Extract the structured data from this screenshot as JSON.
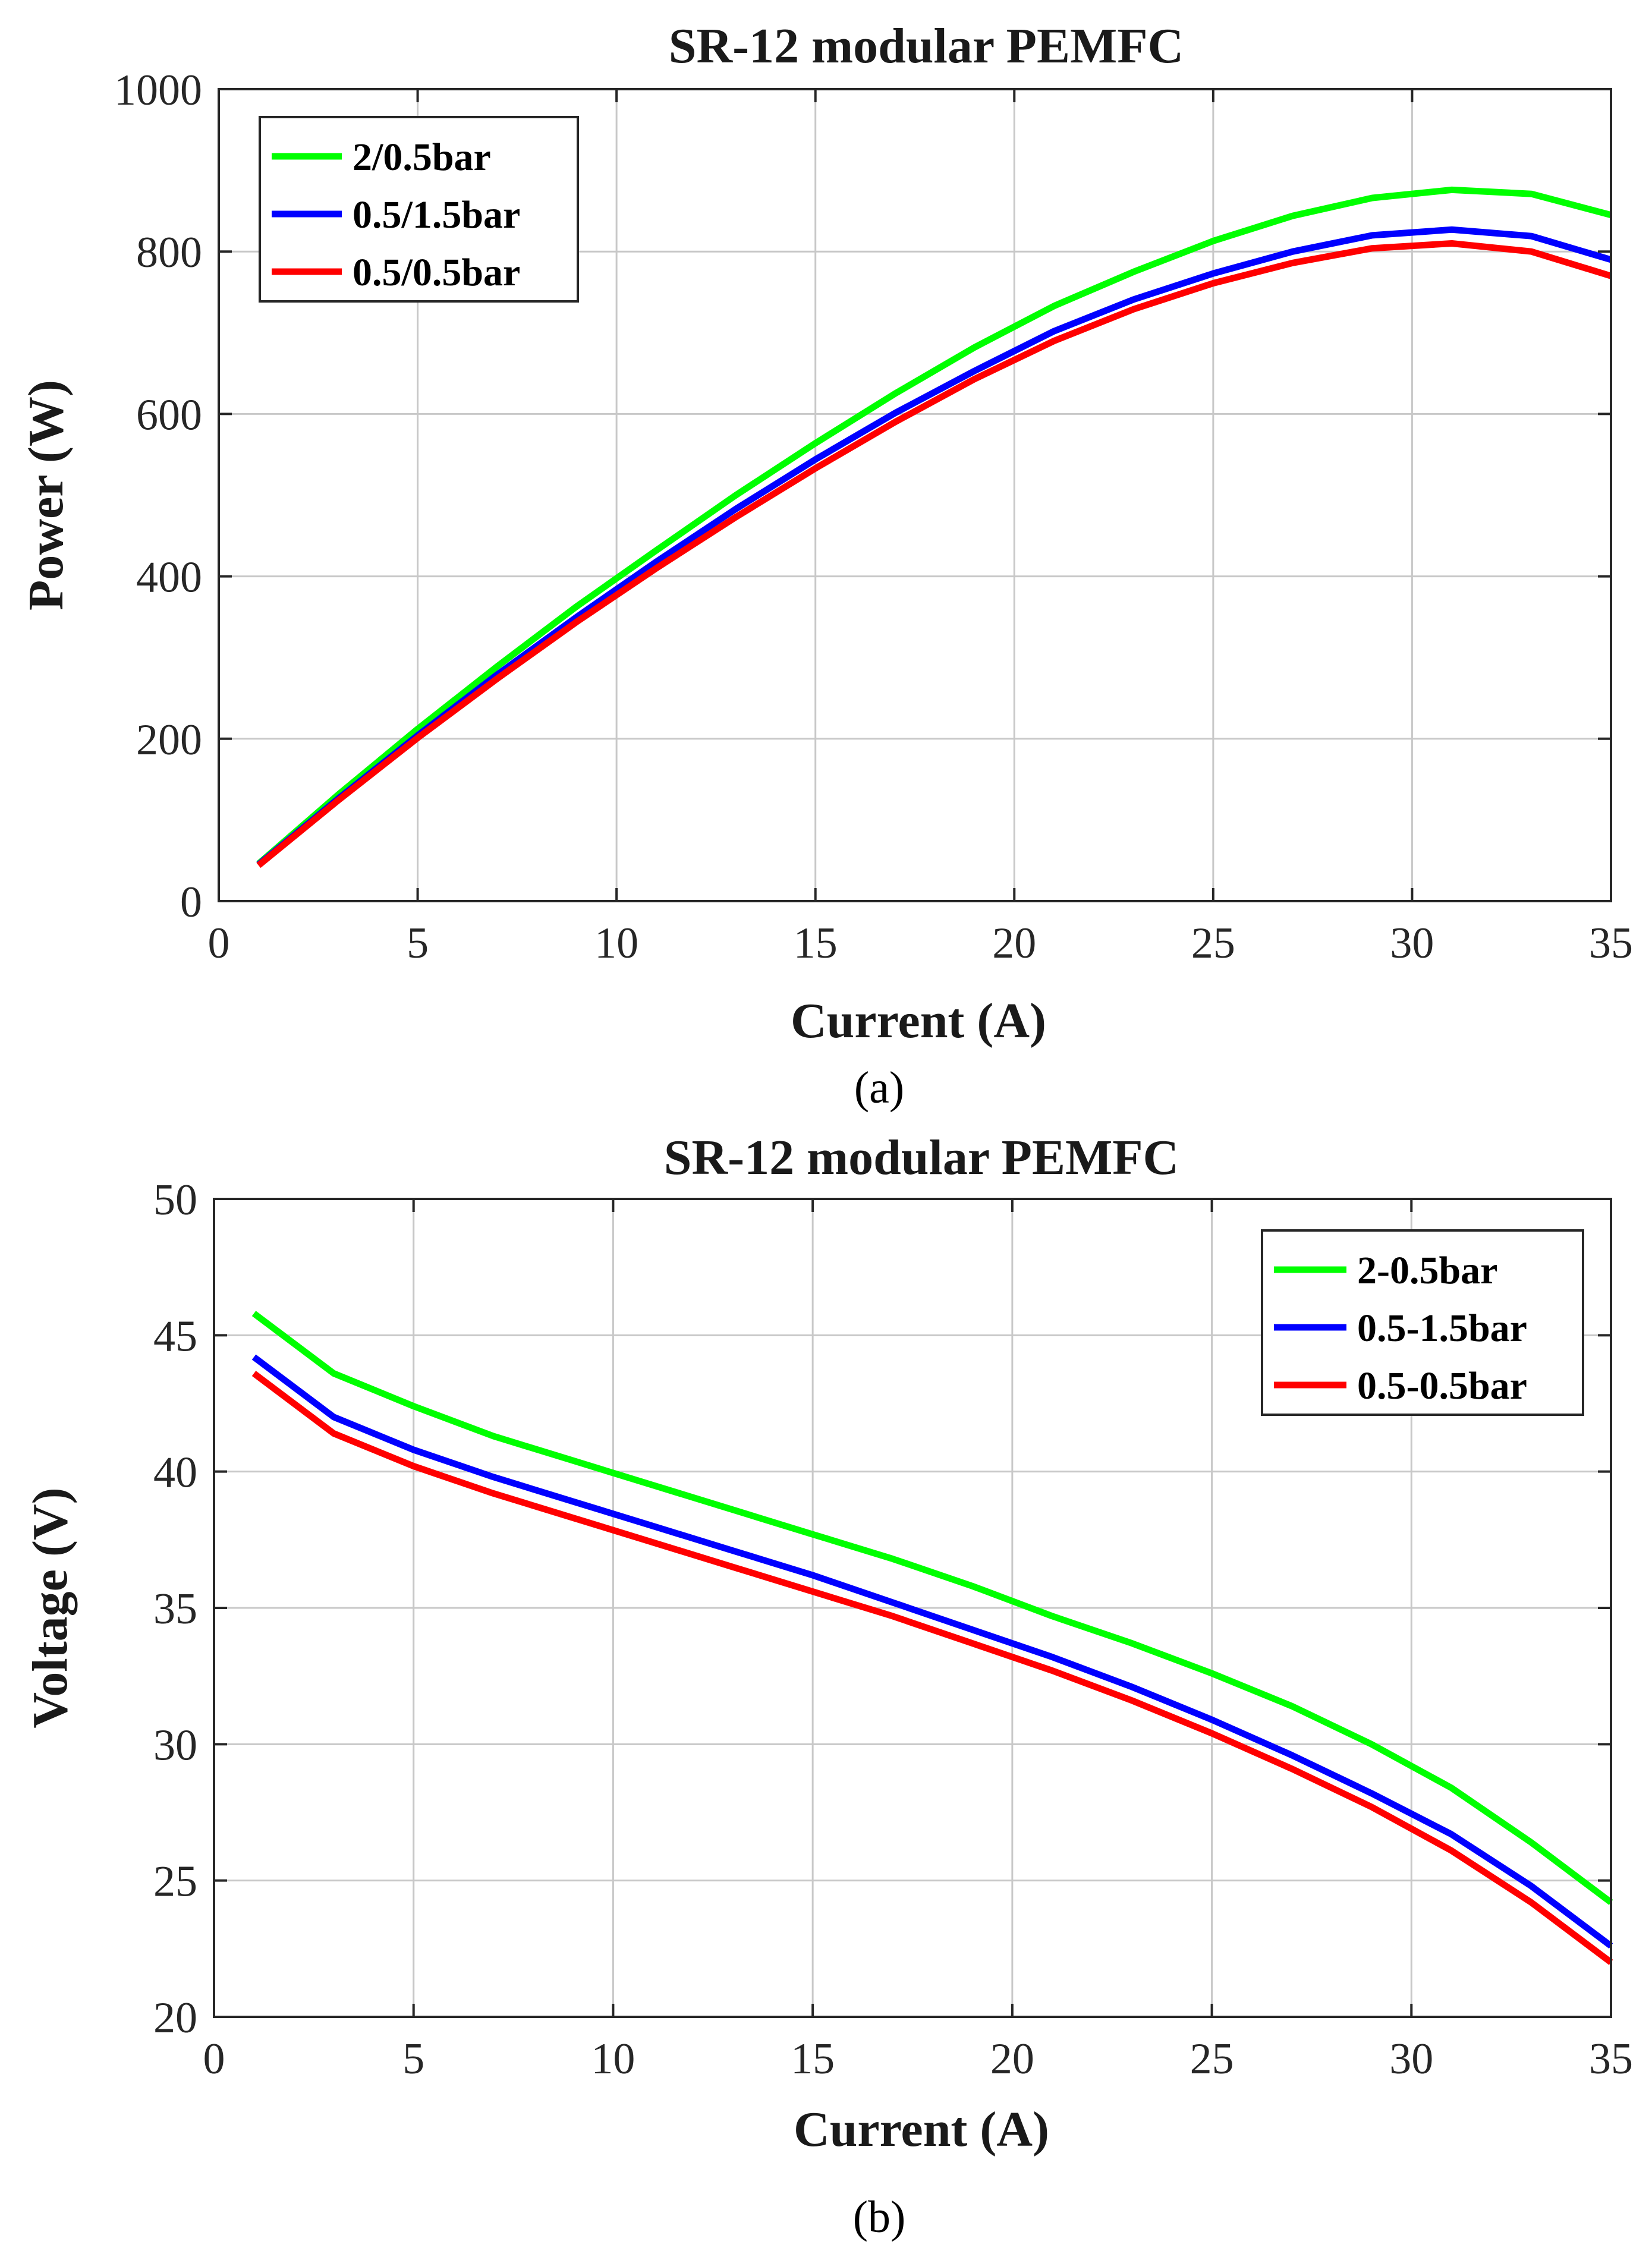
{
  "chart_data": [
    {
      "type": "line",
      "panel": "(a)",
      "title": "SR-12 modular PEMFC",
      "xlabel": "Current (A)",
      "ylabel": "Power (W)",
      "xlim": [
        0,
        35
      ],
      "ylim": [
        0,
        1000
      ],
      "xticks": [
        0,
        5,
        10,
        15,
        20,
        25,
        30,
        35
      ],
      "yticks": [
        0,
        200,
        400,
        600,
        800,
        1000
      ],
      "grid": true,
      "legend_position": "top-left",
      "x": [
        1,
        3,
        5,
        7,
        9,
        11,
        13,
        15,
        17,
        19,
        21,
        23,
        25,
        27,
        29,
        31,
        33,
        35
      ],
      "series": [
        {
          "name": "2/0.5bar",
          "color": "#00ff00",
          "values": [
            46,
            131,
            212,
            289,
            363,
            432,
            500,
            564,
            625,
            682,
            733,
            775,
            813,
            844,
            866,
            876,
            871,
            845
          ]
        },
        {
          "name": "0.5/1.5bar",
          "color": "#0000ff",
          "values": [
            45,
            126,
            204,
            279,
            350,
            418,
            483,
            544,
            601,
            653,
            702,
            741,
            773,
            800,
            820,
            827,
            819,
            790
          ]
        },
        {
          "name": "0.5/0.5bar",
          "color": "#ff0000",
          "values": [
            44,
            124,
            201,
            274,
            344,
            410,
            473,
            533,
            590,
            643,
            690,
            729,
            761,
            786,
            804,
            810,
            800,
            770
          ]
        }
      ]
    },
    {
      "type": "line",
      "panel": "(b)",
      "title": "SR-12 modular PEMFC",
      "xlabel": "Current (A)",
      "ylabel": "Voltage (V)",
      "xlim": [
        0,
        35
      ],
      "ylim": [
        20,
        50
      ],
      "xticks": [
        0,
        5,
        10,
        15,
        20,
        25,
        30,
        35
      ],
      "yticks": [
        20,
        25,
        30,
        35,
        40,
        45,
        50
      ],
      "grid": true,
      "legend_position": "top-right",
      "x": [
        1,
        3,
        5,
        7,
        9,
        11,
        13,
        15,
        17,
        19,
        21,
        23,
        25,
        27,
        29,
        31,
        33,
        35
      ],
      "series": [
        {
          "name": "2-0.5bar",
          "color": "#00ff00",
          "values": [
            45.8,
            43.6,
            42.4,
            41.3,
            40.4,
            39.5,
            38.6,
            37.7,
            36.8,
            35.8,
            34.7,
            33.7,
            32.6,
            31.4,
            30.0,
            28.4,
            26.4,
            24.2
          ]
        },
        {
          "name": "0.5-1.5bar",
          "color": "#0000ff",
          "values": [
            44.2,
            42.0,
            40.8,
            39.8,
            38.9,
            38.0,
            37.1,
            36.2,
            35.2,
            34.2,
            33.2,
            32.1,
            30.9,
            29.6,
            28.2,
            26.7,
            24.8,
            22.6
          ]
        },
        {
          "name": "0.5-0.5bar",
          "color": "#ff0000",
          "values": [
            43.6,
            41.4,
            40.2,
            39.2,
            38.3,
            37.4,
            36.5,
            35.6,
            34.7,
            33.7,
            32.7,
            31.6,
            30.4,
            29.1,
            27.7,
            26.1,
            24.2,
            22.0
          ]
        }
      ]
    }
  ]
}
